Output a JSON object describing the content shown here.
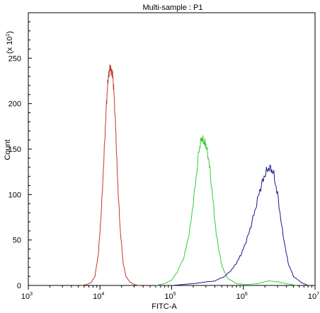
{
  "chart_data": {
    "type": "line",
    "title": "Multi-sample : P1",
    "xlabel": "FITC-A",
    "ylabel": "Count",
    "y_multiplier_label": "(x 10",
    "y_multiplier_exp": "1",
    "y_multiplier_close": ")",
    "x_scale": "log",
    "xlim": [
      1000,
      10000000
    ],
    "ylim": [
      0,
      300
    ],
    "x_ticks": [
      {
        "value": 1000,
        "base": "10",
        "exp": "3"
      },
      {
        "value": 10000,
        "base": "10",
        "exp": "4"
      },
      {
        "value": 100000,
        "base": "10",
        "exp": "5"
      },
      {
        "value": 1000000,
        "base": "10",
        "exp": "6"
      },
      {
        "value": 10000000,
        "base": "10",
        "exp": "7"
      }
    ],
    "y_ticks": [
      0,
      50,
      100,
      150,
      200,
      250
    ],
    "grid": false,
    "series": [
      {
        "color": "#c0392b",
        "points": [
          [
            5500,
            0
          ],
          [
            6500,
            1
          ],
          [
            7500,
            3
          ],
          [
            8500,
            10
          ],
          [
            9500,
            35
          ],
          [
            10500,
            85
          ],
          [
            11500,
            150
          ],
          [
            12300,
            200
          ],
          [
            12900,
            225
          ],
          [
            13400,
            235
          ],
          [
            13900,
            240
          ],
          [
            14400,
            236
          ],
          [
            15000,
            232
          ],
          [
            15600,
            215
          ],
          [
            16500,
            175
          ],
          [
            17500,
            120
          ],
          [
            19000,
            65
          ],
          [
            21000,
            25
          ],
          [
            23000,
            10
          ],
          [
            26000,
            4
          ],
          [
            30000,
            1
          ],
          [
            35000,
            0
          ]
        ]
      },
      {
        "color": "#33cc33",
        "points": [
          [
            60000,
            0
          ],
          [
            80000,
            2
          ],
          [
            100000,
            6
          ],
          [
            120000,
            15
          ],
          [
            150000,
            32
          ],
          [
            180000,
            62
          ],
          [
            210000,
            105
          ],
          [
            240000,
            148
          ],
          [
            260000,
            162
          ],
          [
            280000,
            158
          ],
          [
            300000,
            155
          ],
          [
            330000,
            138
          ],
          [
            370000,
            100
          ],
          [
            420000,
            55
          ],
          [
            500000,
            22
          ],
          [
            600000,
            8
          ],
          [
            800000,
            2
          ],
          [
            1100000,
            1
          ],
          [
            1600000,
            2
          ],
          [
            2200000,
            5
          ],
          [
            3000000,
            4
          ],
          [
            4000000,
            2
          ],
          [
            5500000,
            0
          ]
        ]
      },
      {
        "color": "#1a1a8c",
        "points": [
          [
            100000,
            0
          ],
          [
            200000,
            2
          ],
          [
            400000,
            5
          ],
          [
            550000,
            10
          ],
          [
            700000,
            18
          ],
          [
            850000,
            28
          ],
          [
            1000000,
            40
          ],
          [
            1200000,
            58
          ],
          [
            1450000,
            82
          ],
          [
            1700000,
            105
          ],
          [
            2000000,
            122
          ],
          [
            2300000,
            130
          ],
          [
            2600000,
            125
          ],
          [
            3000000,
            100
          ],
          [
            3500000,
            60
          ],
          [
            4200000,
            25
          ],
          [
            5000000,
            10
          ],
          [
            6500000,
            3
          ],
          [
            8000000,
            0
          ]
        ]
      }
    ]
  }
}
